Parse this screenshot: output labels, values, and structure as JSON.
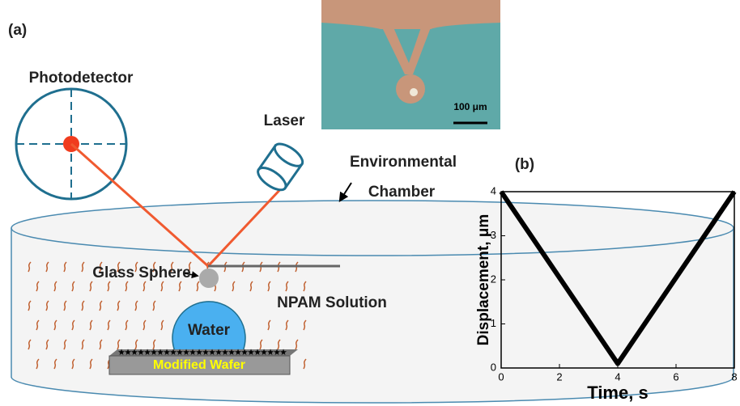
{
  "panel_a": {
    "label": "(a)",
    "photodetector": "Photodetector",
    "laser": "Laser",
    "environmental": "Environmental",
    "chamber": "Chamber",
    "glass_sphere": "Glass Sphere",
    "npam_solution": "NPAM Solution",
    "water": "Water",
    "modified_wafer": "Modified Wafer",
    "scale_bar": "100 μm"
  },
  "chart_data": {
    "type": "line",
    "panel_label": "(b)",
    "x_label": "Time, s",
    "y_label": "Displacement, μm",
    "x": [
      0,
      4,
      8
    ],
    "series": [
      {
        "color": "#000000",
        "values": [
          4,
          0.1,
          4
        ]
      }
    ],
    "xlim": [
      0,
      8
    ],
    "ylim": [
      0,
      4
    ],
    "xticks": [
      0,
      2,
      4,
      6,
      8
    ],
    "yticks": [
      0,
      1,
      2,
      3,
      4
    ]
  }
}
